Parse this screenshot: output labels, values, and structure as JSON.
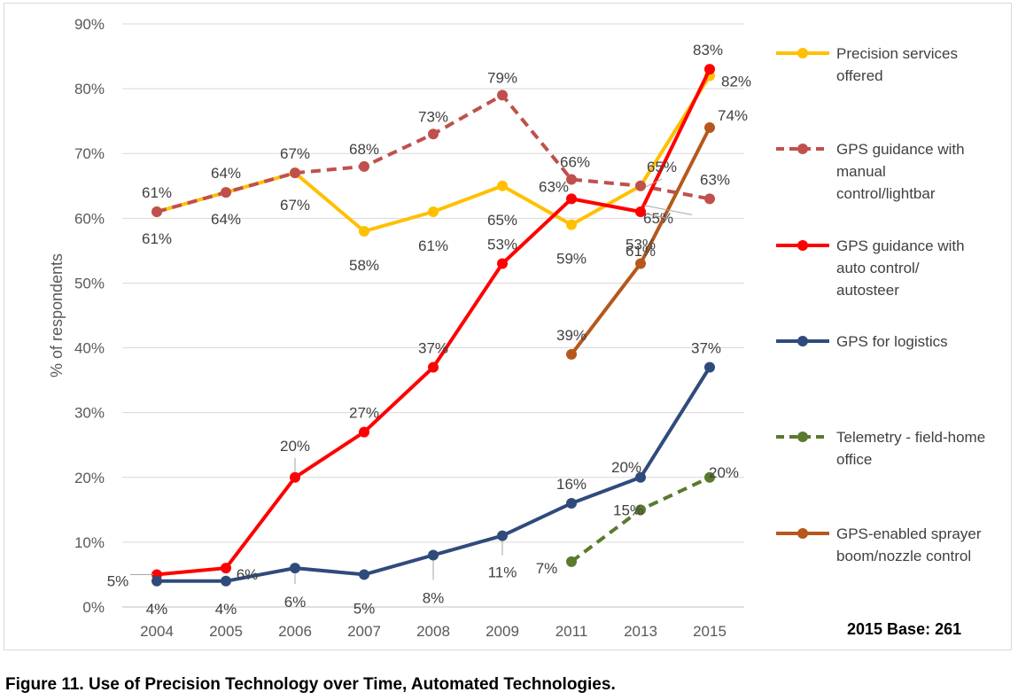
{
  "caption": "Figure 11. Use of Precision Technology over Time, Automated Technologies.",
  "base_note": "2015 Base: 261",
  "chart_data": {
    "type": "line",
    "ylabel": "% of respondents",
    "xlabel": "",
    "categories": [
      "2004",
      "2005",
      "2006",
      "2007",
      "2008",
      "2009",
      "2011",
      "2013",
      "2015"
    ],
    "ylim": [
      0,
      90
    ],
    "yticks": [
      0,
      10,
      20,
      30,
      40,
      50,
      60,
      70,
      80,
      90
    ],
    "ytick_labels": [
      "0%",
      "10%",
      "20%",
      "30%",
      "40%",
      "50%",
      "60%",
      "70%",
      "80%",
      "90%"
    ],
    "grid": "horizontal",
    "legend_position": "right",
    "series": [
      {
        "name": "Precision services offered",
        "legend_lines": [
          "Precision services",
          "offered"
        ],
        "color": "#ffc000",
        "dashed": false,
        "values": [
          61,
          64,
          67,
          58,
          61,
          65,
          59,
          65,
          82
        ],
        "labels": [
          "61%",
          "64%",
          "67%",
          "58%",
          "61%",
          "65%",
          "59%",
          "65%",
          "82%"
        ]
      },
      {
        "name": "GPS guidance with manual control/lightbar",
        "legend_lines": [
          "GPS guidance with",
          "manual",
          "control/lightbar"
        ],
        "color": "#c0504d",
        "dashed": true,
        "values": [
          61,
          64,
          67,
          68,
          73,
          79,
          66,
          65,
          63
        ],
        "labels": [
          "61%",
          "64%",
          "67%",
          "68%",
          "73%",
          "79%",
          "66%",
          "65%",
          "63%"
        ]
      },
      {
        "name": "GPS guidance with auto control/ autosteer",
        "legend_lines": [
          "GPS guidance with",
          "auto control/",
          "autosteer"
        ],
        "color": "#ff0000",
        "dashed": false,
        "values": [
          5,
          6,
          20,
          27,
          37,
          53,
          63,
          61,
          83
        ],
        "labels": [
          "5%",
          "6%",
          "20%",
          "27%",
          "37%",
          "53%",
          "63%",
          "61%",
          "83%"
        ]
      },
      {
        "name": "GPS for logistics",
        "legend_lines": [
          "GPS for logistics"
        ],
        "color": "#2f4b7c",
        "dashed": false,
        "values": [
          4,
          4,
          6,
          5,
          8,
          11,
          16,
          20,
          37
        ],
        "labels": [
          "4%",
          "4%",
          "6%",
          "5%",
          "8%",
          "11%",
          "16%",
          "20%",
          "37%"
        ]
      },
      {
        "name": "Telemetry - field-home office",
        "legend_lines": [
          "Telemetry - field-home",
          "office"
        ],
        "color": "#5a7a2e",
        "dashed": true,
        "values": [
          null,
          null,
          null,
          null,
          null,
          null,
          7,
          15,
          20
        ],
        "labels": [
          null,
          null,
          null,
          null,
          null,
          null,
          "7%",
          "15%",
          "20%"
        ]
      },
      {
        "name": "GPS-enabled sprayer boom/nozzle control",
        "legend_lines": [
          "GPS-enabled sprayer",
          "boom/nozzle control"
        ],
        "color": "#b5581c",
        "dashed": false,
        "values": [
          null,
          null,
          null,
          null,
          null,
          null,
          39,
          53,
          74
        ],
        "labels": [
          null,
          null,
          null,
          null,
          null,
          null,
          "39%",
          "53%",
          "74%"
        ]
      }
    ]
  }
}
